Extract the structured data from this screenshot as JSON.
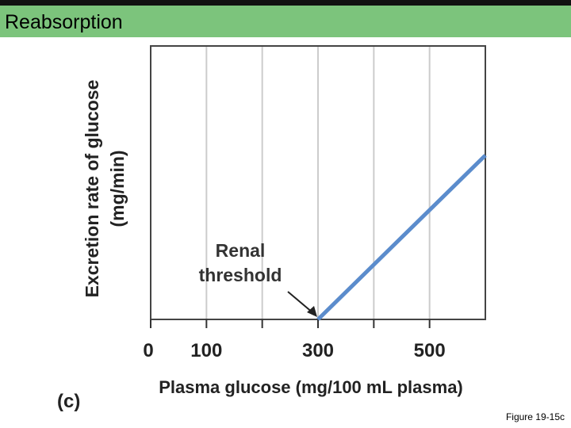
{
  "header": {
    "title": "Reabsorption",
    "bar_color": "#7cc47c"
  },
  "panel_label": "(c)",
  "caption": "Figure 19-15c",
  "chart_data": {
    "type": "line",
    "title": "",
    "xlabel": "Plasma glucose (mg/100 mL plasma)",
    "ylabel": "Excretion rate of glucose",
    "ylabel_unit": "(mg/min)",
    "xlim": [
      0,
      600
    ],
    "x_ticks": [
      0,
      100,
      200,
      300,
      400,
      500
    ],
    "x_tick_labels": [
      "0",
      "100",
      "",
      "300",
      "",
      "500"
    ],
    "grid": true,
    "series": [
      {
        "x": [
          300,
          600
        ],
        "y": [
          0,
          0.6
        ],
        "color": "#5b8ccc"
      }
    ],
    "annotation": {
      "text_line1": "Renal",
      "text_line2": "threshold",
      "x": 300,
      "y": 0
    }
  }
}
